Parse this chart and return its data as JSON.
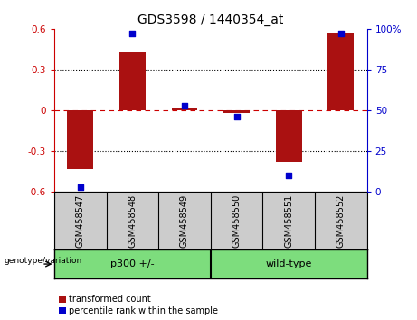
{
  "title": "GDS3598 / 1440354_at",
  "samples": [
    "GSM458547",
    "GSM458548",
    "GSM458549",
    "GSM458550",
    "GSM458551",
    "GSM458552"
  ],
  "bar_values": [
    -0.43,
    0.43,
    0.02,
    -0.02,
    -0.38,
    0.57
  ],
  "percentile_values": [
    3,
    97,
    53,
    46,
    10,
    97
  ],
  "bar_color": "#aa1111",
  "dot_color": "#0000cc",
  "ylim_left": [
    -0.6,
    0.6
  ],
  "ylim_right": [
    0,
    100
  ],
  "yticks_left": [
    -0.6,
    -0.3,
    0.0,
    0.3,
    0.6
  ],
  "yticks_right": [
    0,
    25,
    50,
    75,
    100
  ],
  "ytick_labels_right": [
    "0",
    "25",
    "50",
    "75",
    "100%"
  ],
  "groups": [
    {
      "label": "p300 +/-",
      "start": 0,
      "end": 2
    },
    {
      "label": "wild-type",
      "start": 3,
      "end": 5
    }
  ],
  "genotype_label": "genotype/variation",
  "legend_bar_label": "transformed count",
  "legend_dot_label": "percentile rank within the sample",
  "plot_bg": "#ffffff",
  "sample_area_bg": "#cccccc",
  "group_bg": "#7ddd7d",
  "bar_width": 0.5,
  "title_fontsize": 10,
  "tick_fontsize": 7.5,
  "sample_fontsize": 7,
  "group_fontsize": 8,
  "legend_fontsize": 7
}
